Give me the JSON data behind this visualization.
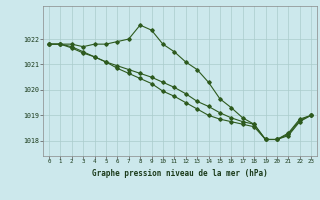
{
  "title": "Graphe pression niveau de la mer (hPa)",
  "background_color": "#cce8ec",
  "grid_color": "#aacccc",
  "line_color": "#2d5a1e",
  "xlim": [
    -0.5,
    23.5
  ],
  "ylim": [
    1017.4,
    1023.3
  ],
  "yticks": [
    1018,
    1019,
    1020,
    1021,
    1022
  ],
  "xticks": [
    0,
    1,
    2,
    3,
    4,
    5,
    6,
    7,
    8,
    9,
    10,
    11,
    12,
    13,
    14,
    15,
    16,
    17,
    18,
    19,
    20,
    21,
    22,
    23
  ],
  "series1": [
    1021.8,
    1021.8,
    1021.8,
    1021.7,
    1021.8,
    1021.8,
    1021.9,
    1022.0,
    1022.55,
    1022.35,
    1021.8,
    1021.5,
    1021.1,
    1020.8,
    1020.3,
    1019.65,
    1019.3,
    1018.9,
    1018.65,
    1018.05,
    1018.05,
    1018.3,
    1018.85,
    1019.0
  ],
  "series2": [
    1021.8,
    1021.8,
    1021.7,
    1021.5,
    1021.3,
    1021.1,
    1020.85,
    1020.65,
    1020.45,
    1020.25,
    1019.95,
    1019.75,
    1019.5,
    1019.25,
    1019.0,
    1018.85,
    1018.75,
    1018.65,
    1018.55,
    1018.05,
    1018.05,
    1018.2,
    1018.75,
    1019.0
  ],
  "series3": [
    1021.8,
    1021.8,
    1021.65,
    1021.45,
    1021.3,
    1021.1,
    1020.95,
    1020.8,
    1020.65,
    1020.5,
    1020.3,
    1020.1,
    1019.85,
    1019.55,
    1019.35,
    1019.1,
    1018.9,
    1018.75,
    1018.65,
    1018.05,
    1018.05,
    1018.25,
    1018.8,
    1019.0
  ]
}
